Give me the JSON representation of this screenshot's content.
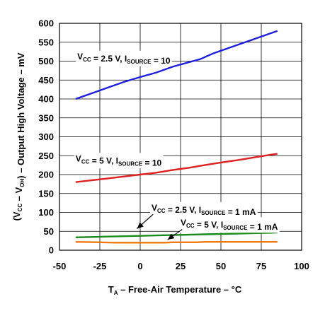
{
  "chart_data": {
    "type": "line",
    "title": "",
    "xlabel": {
      "main": "T",
      "sub": "A",
      "rest": " – Free-Air Temperature – °C"
    },
    "ylabel": {
      "parts": [
        {
          "t": "(V",
          "sub": false
        },
        {
          "t": "CC",
          "sub": true
        },
        {
          "t": " – V",
          "sub": false
        },
        {
          "t": "OH",
          "sub": true
        },
        {
          "t": ") – Output High Voltage – mV",
          "sub": false
        }
      ]
    },
    "xlim": [
      -50,
      100
    ],
    "ylim": [
      0,
      600
    ],
    "xticks": [
      -50,
      -25,
      0,
      25,
      50,
      75,
      100
    ],
    "yticks": [
      0,
      50,
      100,
      150,
      200,
      250,
      300,
      350,
      400,
      450,
      500,
      550,
      600
    ],
    "grid": true,
    "series": [
      {
        "color": "#1f1fe0",
        "x": [
          -40,
          -30,
          -20,
          -10,
          0,
          10,
          20,
          30,
          37,
          45,
          55,
          65,
          75,
          85
        ],
        "y": [
          400,
          415,
          430,
          445,
          458,
          470,
          485,
          497,
          505,
          520,
          535,
          550,
          565,
          580
        ]
      },
      {
        "color": "#e01f1f",
        "x": [
          -40,
          -30,
          -20,
          -10,
          0,
          10,
          20,
          30,
          40,
          50,
          60,
          70,
          80,
          85
        ],
        "y": [
          180,
          185,
          190,
          195,
          200,
          205,
          212,
          218,
          225,
          232,
          238,
          245,
          252,
          255
        ]
      },
      {
        "color": "#1a8a1a",
        "x": [
          -40,
          -30,
          -20,
          -10,
          0,
          10,
          20,
          30,
          40,
          50,
          60,
          70,
          80,
          85
        ],
        "y": [
          34,
          35,
          36,
          37,
          38,
          39,
          40,
          41,
          42,
          43,
          44,
          45,
          46,
          47
        ]
      },
      {
        "color": "#f07a10",
        "x": [
          -40,
          -25,
          -15,
          0,
          15,
          20,
          35,
          40,
          50,
          60,
          70,
          80,
          85
        ],
        "y": [
          22,
          21,
          20,
          20,
          20,
          21,
          21,
          22,
          22,
          22,
          22,
          22,
          22
        ]
      }
    ],
    "annotations": [
      {
        "id": "blue",
        "parts": [
          {
            "t": "V",
            "sub": false
          },
          {
            "t": "CC",
            "sub": true
          },
          {
            "t": " = 2.5 V, I",
            "sub": false
          },
          {
            "t": "SOURCE",
            "sub": true
          },
          {
            "t": " = 10",
            "sub": false
          }
        ],
        "x": -39,
        "y": 505
      },
      {
        "id": "red",
        "parts": [
          {
            "t": "V",
            "sub": false
          },
          {
            "t": "CC",
            "sub": true
          },
          {
            "t": " = 5 V, I",
            "sub": false
          },
          {
            "t": "SOURCE",
            "sub": true
          },
          {
            "t": " = 10",
            "sub": false
          }
        ],
        "x": -40,
        "y": 235
      },
      {
        "id": "green",
        "parts": [
          {
            "t": "V",
            "sub": false
          },
          {
            "t": "CC",
            "sub": true
          },
          {
            "t": " = 2.5 V, I",
            "sub": false
          },
          {
            "t": "SOURCE",
            "sub": true
          },
          {
            "t": " = 1 mA",
            "sub": false
          }
        ],
        "x": 7,
        "y": 105
      },
      {
        "id": "orange",
        "parts": [
          {
            "t": "V",
            "sub": false
          },
          {
            "t": "CC",
            "sub": true
          },
          {
            "t": " = 5 V, I",
            "sub": false
          },
          {
            "t": "SOURCE",
            "sub": true
          },
          {
            "t": " = 1 mA",
            "sub": false
          }
        ],
        "x": 25,
        "y": 65
      }
    ],
    "arrows": [
      {
        "id": "green",
        "from": [
          8,
          95
        ],
        "to": [
          -2,
          57
        ]
      },
      {
        "id": "orange",
        "from": [
          26,
          55
        ],
        "to": [
          17,
          28
        ]
      }
    ]
  }
}
